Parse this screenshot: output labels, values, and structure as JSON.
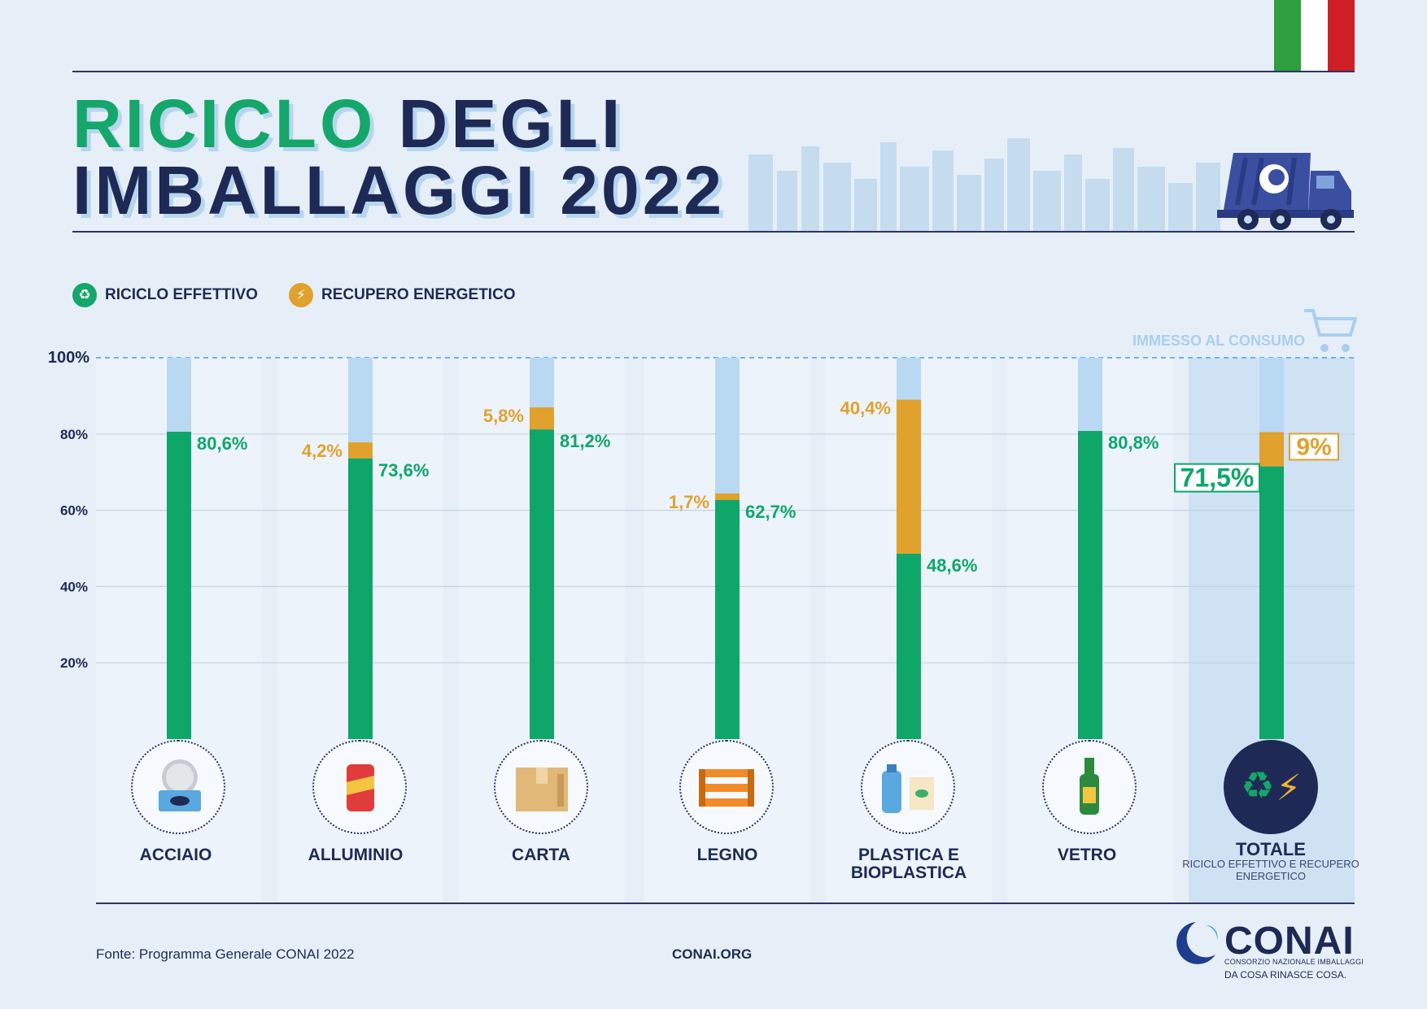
{
  "header": {
    "title_line1_green": "RICICLO",
    "title_line1_dark": "DEGLI",
    "title_line2": "IMBALLAGGI 2022"
  },
  "flag_colors": [
    "#2e9e3e",
    "#ffffff",
    "#cf1f26"
  ],
  "colors": {
    "effective": "#0fa66a",
    "energy": "#e0a12d",
    "remaining": "#b9d9f2",
    "navy": "#1e2a55"
  },
  "legend": [
    {
      "label": "RICICLO EFFETTIVO",
      "icon": "recycle-icon",
      "color": "#15a66a"
    },
    {
      "label": "RECUPERO ENERGETICO",
      "icon": "lightning-icon",
      "color": "#e0a12d"
    }
  ],
  "chart_data": {
    "type": "bar",
    "stacked": true,
    "ylim": [
      0,
      100
    ],
    "yticks": [
      "20%",
      "40%",
      "60%",
      "80%",
      "100%"
    ],
    "ytick_values": [
      20,
      40,
      60,
      80,
      100
    ],
    "reference_line": {
      "label": "IMMESSO AL CONSUMO",
      "value": 100,
      "icon": "shopping-cart-icon"
    },
    "categories": [
      "ACCIAIO",
      "ALLUMINIO",
      "CARTA",
      "LEGNO",
      "PLASTICA E BIOPLASTICA",
      "VETRO",
      "TOTALE"
    ],
    "category_icons": [
      "steel-can-icon",
      "aluminium-can-icon",
      "cardboard-box-icon",
      "wooden-crate-icon",
      "plastic-bottle-icon",
      "glass-bottle-icon",
      "recycle-energy-icon"
    ],
    "series": [
      {
        "name": "RICICLO EFFETTIVO",
        "values": [
          80.6,
          73.6,
          81.2,
          62.7,
          48.6,
          80.8,
          71.5
        ],
        "labels": [
          "80,6%",
          "73,6%",
          "81,2%",
          "62,7%",
          "48,6%",
          "80,8%",
          "71,5%"
        ]
      },
      {
        "name": "RECUPERO ENERGETICO",
        "values": [
          0,
          4.2,
          5.8,
          1.7,
          40.4,
          0,
          9
        ],
        "labels": [
          "",
          "4,2%",
          "5,8%",
          "1,7%",
          "40,4%",
          "",
          "9%"
        ]
      }
    ],
    "total_subtitle": "RICICLO EFFETTIVO E RECUPERO ENERGETICO"
  },
  "footer": {
    "source": "Fonte: Programma Generale CONAI 2022",
    "site": "CONAI.ORG"
  },
  "brand": {
    "name": "CONAI",
    "full_name": "CONSORZIO NAZIONALE IMBALLAGGI",
    "tagline": "DA COSA RINASCE COSA."
  }
}
